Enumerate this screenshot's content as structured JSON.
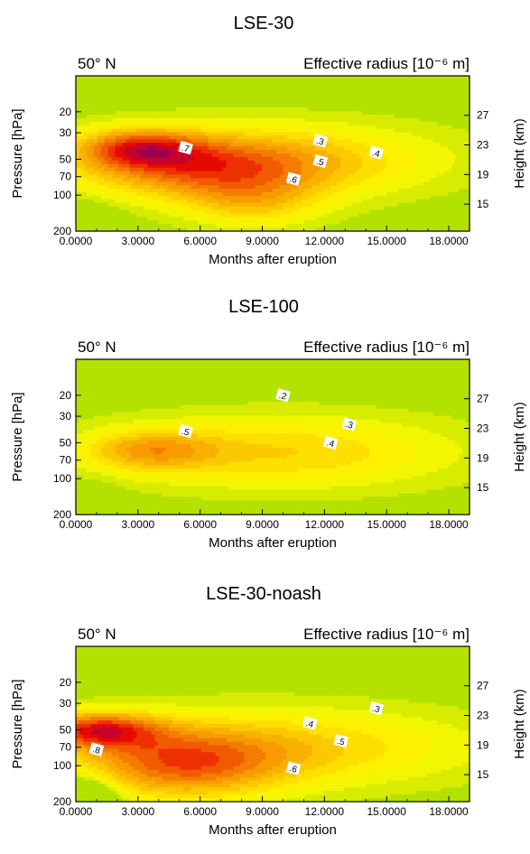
{
  "chart_data": [
    {
      "type": "heatmap",
      "title": "LSE-30",
      "left_label": "50° N",
      "right_label": "Effective radius [10⁻⁶ m]",
      "xlabel": "Months after eruption",
      "ylabel": "Pressure [hPa]",
      "ylabel_right": "Height (km)",
      "x_ticks": [
        "0.0000",
        "3.0000",
        "6.0000",
        "9.0000",
        "12.0000",
        "15.0000",
        "18.0000"
      ],
      "xlim": [
        0,
        19
      ],
      "y_ticks": [
        "20",
        "30",
        "50",
        "70",
        "100",
        "200"
      ],
      "ylim": [
        200,
        10
      ],
      "y_scale": "log",
      "y2_ticks": [
        "27",
        "23",
        "19",
        "15"
      ],
      "contour_labels": [
        {
          "label": ".7",
          "x": 5.3,
          "y": 40
        },
        {
          "label": ".3",
          "x": 11.8,
          "y": 35
        },
        {
          "label": ".4",
          "x": 14.5,
          "y": 44
        },
        {
          "label": ".5",
          "x": 11.8,
          "y": 52
        },
        {
          "label": ".6",
          "x": 10.5,
          "y": 73
        }
      ],
      "field": {
        "background": 0.15,
        "blobs": [
          {
            "x": 9.5,
            "y": 50,
            "sx": 9,
            "sy": 0.75,
            "amp": 0.25
          },
          {
            "x": 6,
            "y": 60,
            "sx": 6,
            "sy": 0.6,
            "amp": 0.3
          },
          {
            "x": 3,
            "y": 40,
            "sx": 3,
            "sy": 0.38,
            "amp": 0.35
          },
          {
            "x": 8.5,
            "y": 120,
            "sx": 3.5,
            "sy": 0.5,
            "amp": 0.2
          }
        ],
        "holes": [
          {
            "x": 0.6,
            "y": 190,
            "sx": 1.3,
            "sy": 0.35,
            "amp": 0.3
          }
        ]
      }
    },
    {
      "type": "heatmap",
      "title": "LSE-100",
      "left_label": "50° N",
      "right_label": "Effective radius [10⁻⁶ m]",
      "xlabel": "Months after eruption",
      "ylabel": "Pressure [hPa]",
      "ylabel_right": "Height (km)",
      "x_ticks": [
        "0.0000",
        "3.0000",
        "6.0000",
        "9.0000",
        "12.0000",
        "15.0000",
        "18.0000"
      ],
      "xlim": [
        0,
        19
      ],
      "y_ticks": [
        "20",
        "30",
        "50",
        "70",
        "100",
        "200"
      ],
      "ylim": [
        200,
        10
      ],
      "y_scale": "log",
      "y2_ticks": [
        "27",
        "23",
        "19",
        "15"
      ],
      "contour_labels": [
        {
          "label": ".2",
          "x": 10,
          "y": 20
        },
        {
          "label": ".5",
          "x": 5.3,
          "y": 40
        },
        {
          "label": ".3",
          "x": 13.2,
          "y": 35
        },
        {
          "label": ".4",
          "x": 12.3,
          "y": 50
        }
      ],
      "field": {
        "background": 0.15,
        "blobs": [
          {
            "x": 10,
            "y": 60,
            "sx": 9,
            "sy": 0.75,
            "amp": 0.25
          },
          {
            "x": 3.5,
            "y": 58,
            "sx": 3.2,
            "sy": 0.4,
            "amp": 0.25
          }
        ],
        "holes": [
          {
            "x": 0.5,
            "y": 200,
            "sx": 1.5,
            "sy": 0.5,
            "amp": 0.15
          }
        ]
      }
    },
    {
      "type": "heatmap",
      "title": "LSE-30-noash",
      "left_label": "50° N",
      "right_label": "Effective radius [10⁻⁶ m]",
      "xlabel": "Months after eruption",
      "ylabel": "Pressure [hPa]",
      "ylabel_right": "Height (km)",
      "x_ticks": [
        "0.0000",
        "3.0000",
        "6.0000",
        "9.0000",
        "12.0000",
        "15.0000",
        "18.0000"
      ],
      "xlim": [
        0,
        19
      ],
      "y_ticks": [
        "20",
        "30",
        "50",
        "70",
        "100",
        "200"
      ],
      "ylim": [
        200,
        10
      ],
      "y_scale": "log",
      "y2_ticks": [
        "27",
        "23",
        "19",
        "15"
      ],
      "contour_labels": [
        {
          "label": ".8",
          "x": 1,
          "y": 73
        },
        {
          "label": ".4",
          "x": 11.3,
          "y": 44
        },
        {
          "label": ".3",
          "x": 14.5,
          "y": 33
        },
        {
          "label": ".5",
          "x": 12.8,
          "y": 62
        },
        {
          "label": ".6",
          "x": 10.5,
          "y": 105
        }
      ],
      "field": {
        "background": 0.15,
        "blobs": [
          {
            "x": 10,
            "y": 70,
            "sx": 10,
            "sy": 0.8,
            "amp": 0.25
          },
          {
            "x": 5,
            "y": 100,
            "sx": 5,
            "sy": 0.7,
            "amp": 0.35
          },
          {
            "x": 1,
            "y": 50,
            "sx": 3,
            "sy": 0.35,
            "amp": 0.45
          }
        ],
        "holes": [
          {
            "x": 0.3,
            "y": 195,
            "sx": 1.5,
            "sy": 0.4,
            "amp": 0.4
          }
        ]
      }
    }
  ],
  "colors": {
    "scale": [
      "#b4e200",
      "#d7ec00",
      "#f2f600",
      "#fdf100",
      "#fee000",
      "#fcc900",
      "#f9b100",
      "#f79b00",
      "#f47c00",
      "#f15b00",
      "#ee3000",
      "#e40a00",
      "#c8002e",
      "#960052",
      "#6e0066"
    ],
    "levels_start": 0.2,
    "levels_step": 0.05
  }
}
